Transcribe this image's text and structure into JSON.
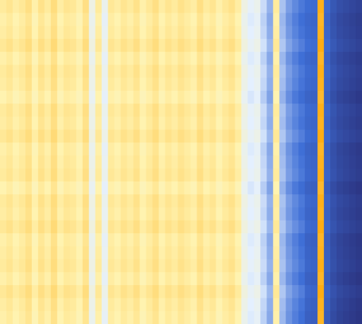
{
  "chart_data": {
    "type": "heatmap",
    "title": "",
    "xlabel": "",
    "ylabel": "",
    "colormap": {
      "low": "#2a2f7a",
      "mid_low": "#3f6fd6",
      "mid": "#e4f0ff",
      "mid_high": "#fff3b0",
      "high": "#ffa500"
    },
    "colorbar_shown": false,
    "grid": false,
    "rows": 25,
    "columns": 57,
    "column_base_values": [
      0.74,
      0.76,
      0.73,
      0.75,
      0.78,
      0.72,
      0.77,
      0.74,
      0.79,
      0.73,
      0.76,
      0.75,
      0.72,
      0.78,
      0.6,
      0.74,
      0.58,
      0.75,
      0.73,
      0.76,
      0.74,
      0.77,
      0.72,
      0.75,
      0.78,
      0.73,
      0.76,
      0.74,
      0.77,
      0.75,
      0.73,
      0.78,
      0.74,
      0.76,
      0.72,
      0.75,
      0.77,
      0.73,
      0.6,
      0.55,
      0.58,
      0.5,
      0.42,
      0.74,
      0.45,
      0.38,
      0.34,
      0.31,
      0.28,
      0.27,
      0.95,
      0.26,
      0.18,
      0.14,
      0.12,
      0.1,
      0.08
    ],
    "row_offsets": [
      0.01,
      -0.01,
      0.0,
      0.02,
      -0.01,
      0.01,
      0.0,
      -0.02,
      0.01,
      0.0,
      0.02,
      -0.01,
      0.0,
      0.01,
      -0.02,
      0.01,
      0.0,
      0.02,
      -0.01,
      0.0,
      0.01,
      -0.01,
      0.02,
      0.0,
      -0.01
    ]
  }
}
